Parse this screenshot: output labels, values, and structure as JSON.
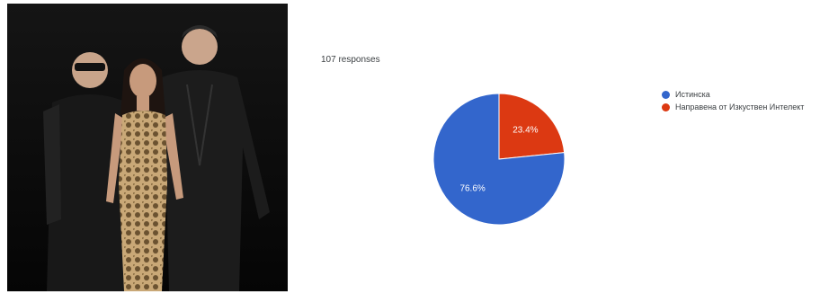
{
  "photo": {
    "description_name": "photo"
  },
  "responses_text": "107 responses",
  "colors": {
    "blue": "#3366cc",
    "red": "#dc3912"
  },
  "chart_data": {
    "type": "pie",
    "title": "",
    "slices": [
      {
        "label": "Истинска",
        "value": 76.6,
        "display": "76.6%",
        "color": "#3366cc"
      },
      {
        "label": "Направена от Изкуствен Интелект",
        "value": 23.4,
        "display": "23.4%",
        "color": "#dc3912"
      }
    ],
    "legend_position": "right"
  }
}
